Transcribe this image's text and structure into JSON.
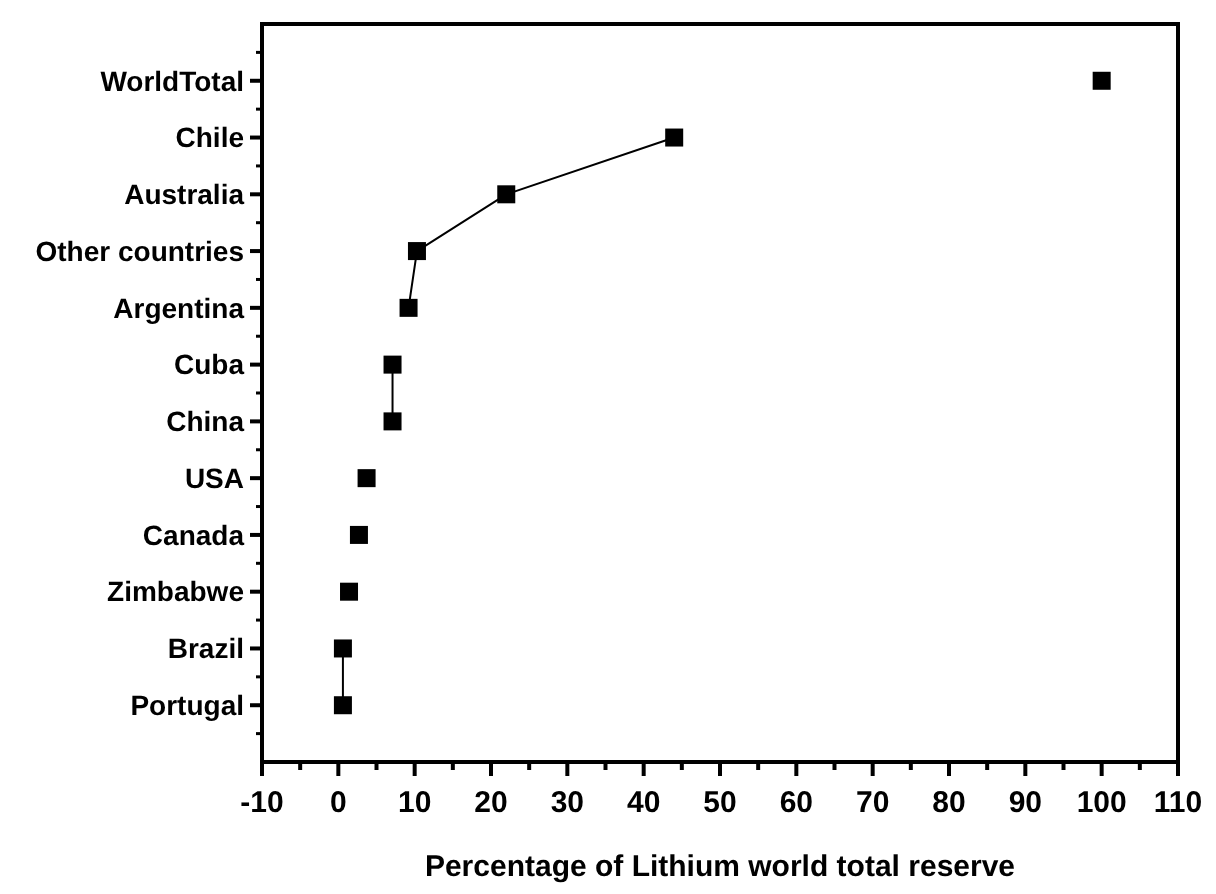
{
  "chart_data": {
    "type": "line",
    "orientation": "horizontal",
    "xlabel": "Percentage of Lithium world total reserve",
    "categories": [
      "WorldTotal",
      "Chile",
      "Australia",
      "Other countries",
      "Argentina",
      "Cuba",
      "China",
      "USA",
      "Canada",
      "Zimbabwe",
      "Brazil",
      "Portugal"
    ],
    "series": [
      {
        "color": "#000000",
        "values": [
          null,
          44,
          22,
          10.3,
          9.2,
          null,
          null,
          null,
          null,
          null,
          null,
          null
        ]
      },
      {
        "color": "#000000",
        "values": [
          null,
          null,
          null,
          null,
          null,
          7.1,
          7.1,
          null,
          null,
          null,
          null,
          null
        ]
      },
      {
        "color": "#000000",
        "values": [
          null,
          null,
          null,
          null,
          null,
          null,
          null,
          null,
          null,
          null,
          0.6,
          0.6
        ]
      },
      {
        "type": "scatter",
        "color": "#000000",
        "values": [
          100,
          null,
          null,
          null,
          null,
          null,
          null,
          3.7,
          2.7,
          1.4,
          null,
          null
        ]
      }
    ],
    "marker": "square",
    "line_style": "solid",
    "grid": false,
    "xlim": [
      -10,
      110
    ],
    "xticks": [
      -10,
      {
        "value": -5,
        "label": null
      },
      0,
      {
        "value": 5,
        "label": null
      },
      10,
      {
        "value": 15,
        "label": null
      },
      20,
      {
        "value": 25,
        "label": null
      },
      30,
      {
        "value": 35,
        "label": null
      },
      40,
      {
        "value": 45,
        "label": null
      },
      50,
      {
        "value": 55,
        "label": null
      },
      60,
      {
        "value": 65,
        "label": null
      },
      70,
      {
        "value": 75,
        "label": null
      },
      80,
      {
        "value": 85,
        "label": null
      },
      90,
      {
        "value": 95,
        "label": null
      },
      100,
      {
        "value": 105,
        "label": null
      },
      110
    ]
  }
}
